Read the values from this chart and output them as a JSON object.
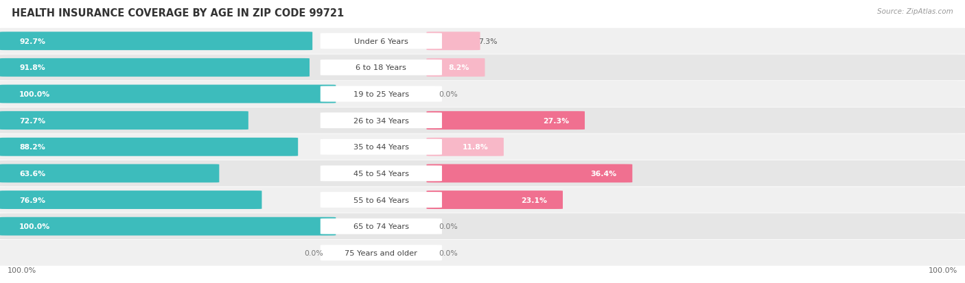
{
  "title": "HEALTH INSURANCE COVERAGE BY AGE IN ZIP CODE 99721",
  "source": "Source: ZipAtlas.com",
  "categories": [
    "Under 6 Years",
    "6 to 18 Years",
    "19 to 25 Years",
    "26 to 34 Years",
    "35 to 44 Years",
    "45 to 54 Years",
    "55 to 64 Years",
    "65 to 74 Years",
    "75 Years and older"
  ],
  "with_coverage": [
    92.7,
    91.8,
    100.0,
    72.7,
    88.2,
    63.6,
    76.9,
    100.0,
    0.0
  ],
  "without_coverage": [
    7.3,
    8.2,
    0.0,
    27.3,
    11.8,
    36.4,
    23.1,
    0.0,
    0.0
  ],
  "color_with": "#3DBCBC",
  "color_without": "#F07090",
  "color_without_light": "#F8B8C8",
  "color_row_bg_odd": "#EFEFEF",
  "color_row_bg_even": "#E5E5E5",
  "title_fontsize": 10.5,
  "label_fontsize": 8.2,
  "bar_label_fontsize": 7.8,
  "legend_fontsize": 8.5,
  "axis_label_fontsize": 8
}
